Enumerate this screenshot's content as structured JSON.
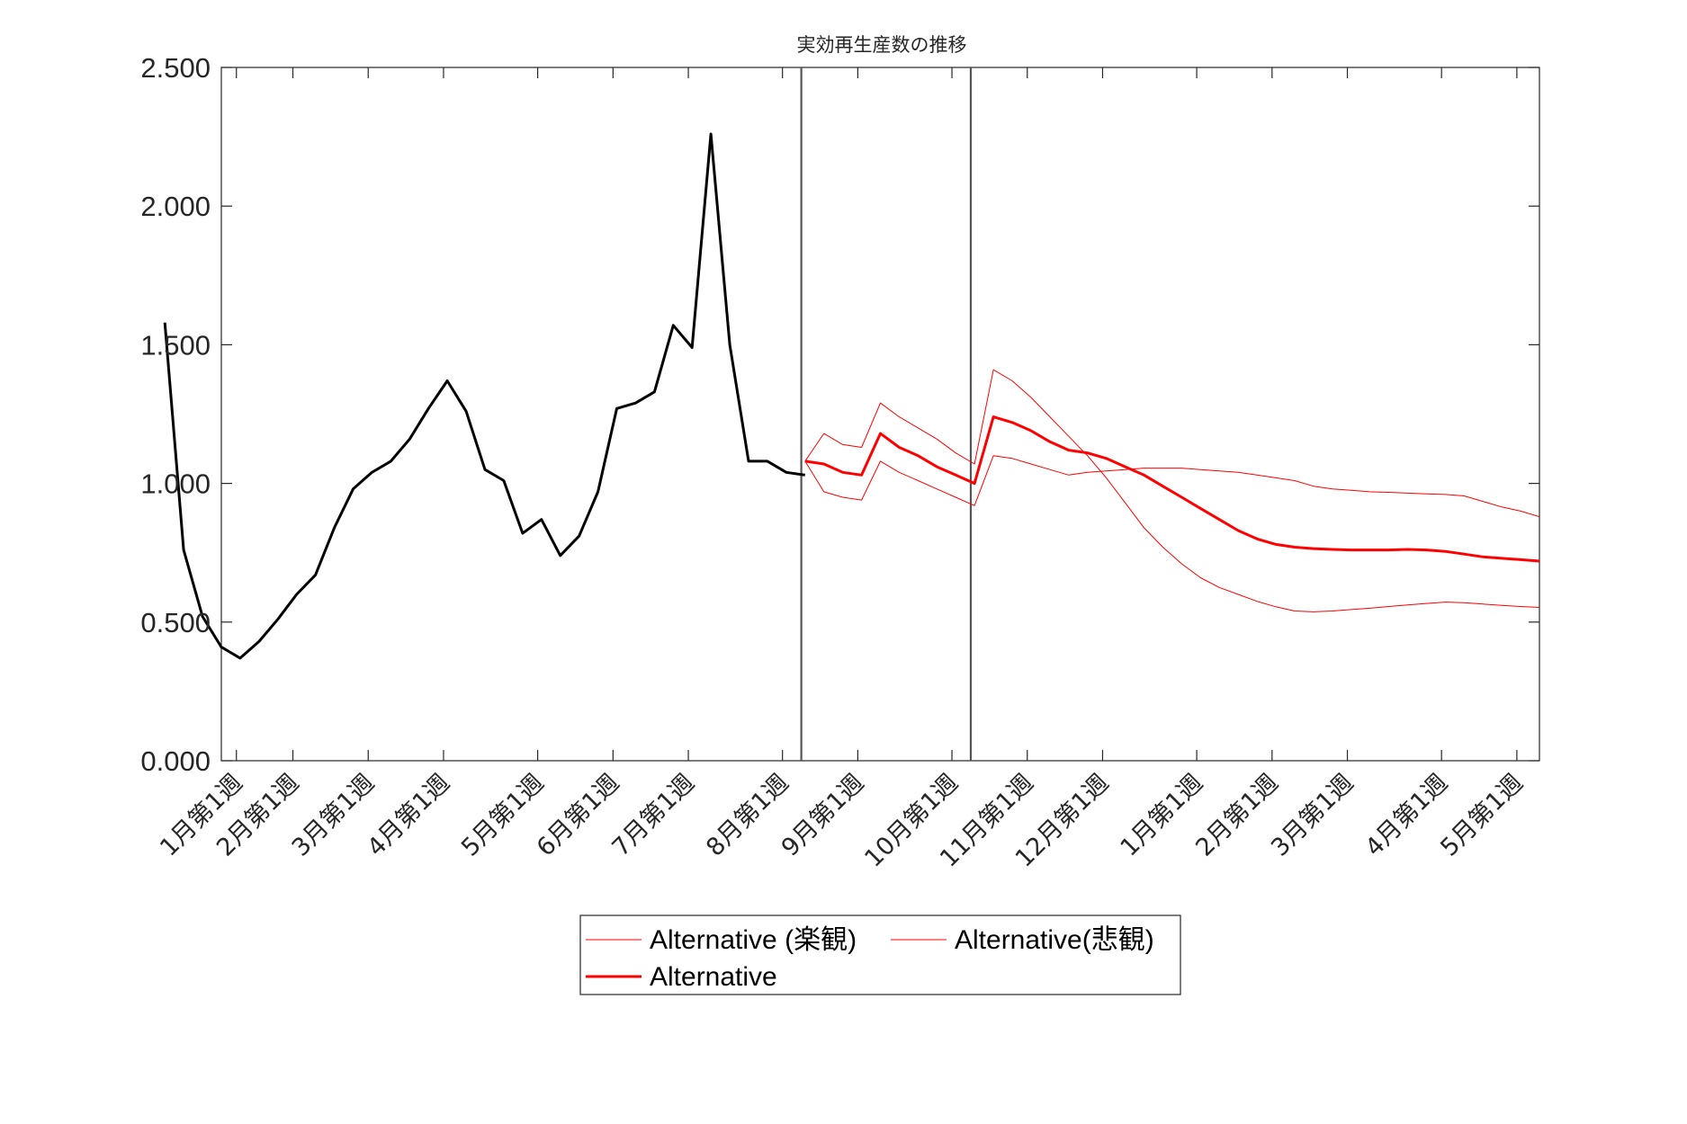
{
  "chart_data": {
    "type": "line",
    "title": "実効再生産数の推移",
    "xlabel": "",
    "ylabel": "",
    "ylim": [
      0,
      2.5
    ],
    "xlim": [
      0,
      70
    ],
    "y_ticks": [
      "0.000",
      "0.500",
      "1.000",
      "1.500",
      "2.000",
      "2.500"
    ],
    "y_tick_values": [
      0,
      0.5,
      1.0,
      1.5,
      2.0,
      2.5
    ],
    "x_ticks": [
      {
        "label": "1月第1週",
        "x": 0.8
      },
      {
        "label": "2月第1週",
        "x": 3.8
      },
      {
        "label": "3月第1週",
        "x": 7.8
      },
      {
        "label": "4月第1週",
        "x": 11.8
      },
      {
        "label": "5月第1週",
        "x": 16.8
      },
      {
        "label": "6月第1週",
        "x": 20.8
      },
      {
        "label": "7月第1週",
        "x": 24.8
      },
      {
        "label": "8月第1週",
        "x": 29.8
      },
      {
        "label": "9月第1週",
        "x": 33.8
      },
      {
        "label": "10月第1週",
        "x": 38.8
      },
      {
        "label": "11月第1週",
        "x": 42.8
      },
      {
        "label": "12月第1週",
        "x": 46.8
      },
      {
        "label": "1月第1週",
        "x": 51.8
      },
      {
        "label": "2月第1週",
        "x": 55.8
      },
      {
        "label": "3月第1週",
        "x": 59.8
      },
      {
        "label": "4月第1週",
        "x": 64.8
      },
      {
        "label": "5月第1週",
        "x": 68.8
      }
    ],
    "vlines": [
      30.8,
      39.8
    ],
    "grid": false,
    "legend_position": "bottom-center",
    "series": [
      {
        "name": "",
        "color": "#000000",
        "width": 3,
        "x": [
          -3,
          -2,
          -1,
          0,
          1,
          2,
          3,
          4,
          5,
          6,
          7,
          8,
          9,
          10,
          11,
          12,
          13,
          14,
          15,
          16,
          17,
          18,
          19,
          20,
          21,
          22,
          23,
          24,
          25,
          26,
          27,
          28,
          29,
          30,
          31
        ],
        "y": [
          1.58,
          0.76,
          0.52,
          0.41,
          0.37,
          0.43,
          0.51,
          0.6,
          0.67,
          0.84,
          0.98,
          1.04,
          1.08,
          1.16,
          1.27,
          1.37,
          1.26,
          1.05,
          1.01,
          0.82,
          0.87,
          0.74,
          0.81,
          0.97,
          1.27,
          1.29,
          1.33,
          1.57,
          1.49,
          2.26,
          1.5,
          1.08,
          1.08,
          1.04,
          1.03
        ]
      },
      {
        "name": "Alternative (楽観)",
        "color": "#ff0000",
        "width": 1,
        "x": [
          31,
          32,
          33,
          34,
          35,
          36,
          37,
          38,
          39,
          40,
          41,
          42,
          43,
          44,
          45,
          46,
          47,
          48,
          49,
          50,
          51,
          52,
          53,
          54,
          55,
          56,
          57,
          58,
          59,
          60,
          61,
          62,
          63,
          64,
          65,
          66,
          67,
          68,
          69,
          70
        ],
        "y": [
          1.08,
          0.97,
          0.95,
          0.94,
          1.08,
          1.04,
          1.01,
          0.98,
          0.95,
          0.92,
          1.1,
          1.09,
          1.07,
          1.05,
          1.03,
          1.04,
          1.045,
          1.05,
          1.055,
          1.055,
          1.055,
          1.05,
          1.045,
          1.04,
          1.03,
          1.02,
          1.01,
          0.99,
          0.98,
          0.975,
          0.97,
          0.968,
          0.965,
          0.962,
          0.96,
          0.955,
          0.935,
          0.915,
          0.9,
          0.88
        ]
      },
      {
        "name": "Alternative(悲観)",
        "color": "#ff0000",
        "width": 1,
        "x": [
          31,
          32,
          33,
          34,
          35,
          36,
          37,
          38,
          39,
          40,
          41,
          42,
          43,
          44,
          45,
          46,
          47,
          48,
          49,
          50,
          51,
          52,
          53,
          54,
          55,
          56,
          57,
          58,
          59,
          60,
          61,
          62,
          63,
          64,
          65,
          66,
          67,
          68,
          69,
          70
        ],
        "y": [
          1.08,
          1.18,
          1.14,
          1.13,
          1.29,
          1.24,
          1.2,
          1.16,
          1.11,
          1.07,
          1.41,
          1.37,
          1.31,
          1.24,
          1.17,
          1.1,
          1.02,
          0.93,
          0.84,
          0.77,
          0.71,
          0.66,
          0.625,
          0.6,
          0.575,
          0.555,
          0.54,
          0.537,
          0.54,
          0.545,
          0.55,
          0.556,
          0.562,
          0.567,
          0.572,
          0.57,
          0.565,
          0.56,
          0.556,
          0.553
        ]
      },
      {
        "name": "Alternative",
        "color": "#ff0000",
        "width": 3,
        "x": [
          31,
          32,
          33,
          34,
          35,
          36,
          37,
          38,
          39,
          40,
          41,
          42,
          43,
          44,
          45,
          46,
          47,
          48,
          49,
          50,
          51,
          52,
          53,
          54,
          55,
          56,
          57,
          58,
          59,
          60,
          61,
          62,
          63,
          64,
          65,
          66,
          67,
          68,
          69,
          70
        ],
        "y": [
          1.08,
          1.07,
          1.04,
          1.03,
          1.18,
          1.13,
          1.1,
          1.06,
          1.03,
          1.0,
          1.24,
          1.22,
          1.19,
          1.15,
          1.12,
          1.11,
          1.09,
          1.06,
          1.03,
          0.99,
          0.95,
          0.91,
          0.87,
          0.83,
          0.8,
          0.78,
          0.77,
          0.765,
          0.762,
          0.76,
          0.76,
          0.76,
          0.762,
          0.76,
          0.755,
          0.745,
          0.735,
          0.73,
          0.725,
          0.72
        ]
      }
    ],
    "legend": [
      {
        "label": "Alternative (楽観)",
        "color": "#ff0000",
        "width": 1
      },
      {
        "label": "Alternative(悲観)",
        "color": "#ff0000",
        "width": 1
      },
      {
        "label": "Alternative",
        "color": "#ff0000",
        "width": 3
      }
    ]
  }
}
